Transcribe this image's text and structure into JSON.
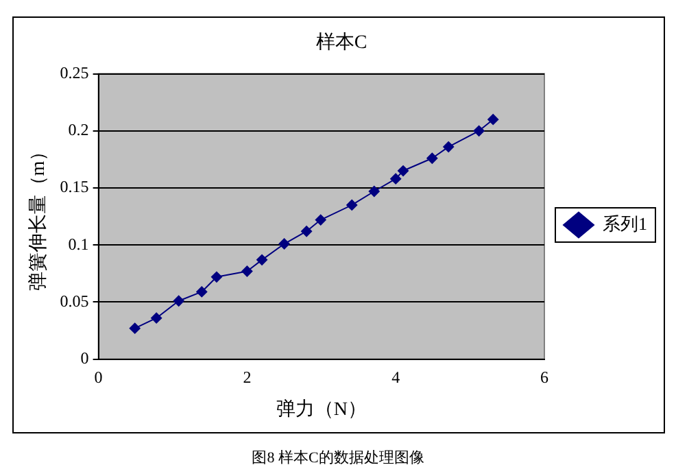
{
  "chart_data": {
    "type": "line",
    "title": "样本C",
    "xlabel": "弹力（N）",
    "ylabel": "弹簧伸长量（m）",
    "x": [
      0.49,
      0.78,
      1.08,
      1.39,
      1.59,
      2.0,
      2.2,
      2.5,
      2.8,
      2.99,
      3.41,
      3.71,
      4.0,
      4.1,
      4.49,
      4.71,
      5.12,
      5.31
    ],
    "series": [
      {
        "name": "系列1",
        "color": "#000080",
        "values": [
          0.027,
          0.036,
          0.051,
          0.059,
          0.072,
          0.077,
          0.087,
          0.101,
          0.112,
          0.122,
          0.135,
          0.147,
          0.158,
          0.165,
          0.176,
          0.186,
          0.2,
          0.21
        ]
      }
    ],
    "xlim": [
      0,
      6
    ],
    "xticks": [
      0,
      2,
      4,
      6
    ],
    "ylim": [
      0,
      0.25
    ],
    "yticks": [
      0,
      0.05,
      0.1,
      0.15,
      0.2,
      0.25
    ],
    "grid": "y",
    "legend": "right",
    "marker": "diamond",
    "line_style": "solid",
    "annotations": [
      "图8 样本C的数据处理图像"
    ]
  }
}
